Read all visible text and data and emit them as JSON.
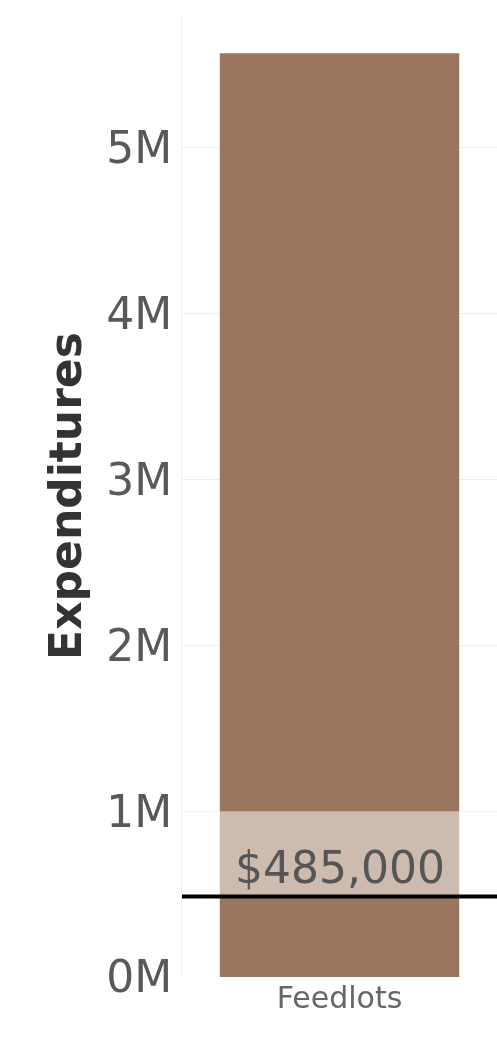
{
  "chart_data": {
    "type": "bar",
    "ylabel": "Expenditures",
    "categories": [
      "Feedlots"
    ],
    "values": [
      5570000
    ],
    "color": "#9a7660",
    "ylim": [
      0,
      5800000
    ],
    "yticks": [
      {
        "value": 0,
        "label": "0M"
      },
      {
        "value": 1000000,
        "label": "1M"
      },
      {
        "value": 2000000,
        "label": "2M"
      },
      {
        "value": 3000000,
        "label": "3M"
      },
      {
        "value": 4000000,
        "label": "4M"
      },
      {
        "value": 5000000,
        "label": "5M"
      }
    ],
    "grid": "y",
    "ref_lines": [
      {
        "axis": "y",
        "value": 485000,
        "label": "$485,000",
        "color": "#000000"
      }
    ],
    "bands": [
      {
        "axis": "y",
        "from": 485000,
        "to": 1000000,
        "color": "#ffffff"
      }
    ]
  }
}
